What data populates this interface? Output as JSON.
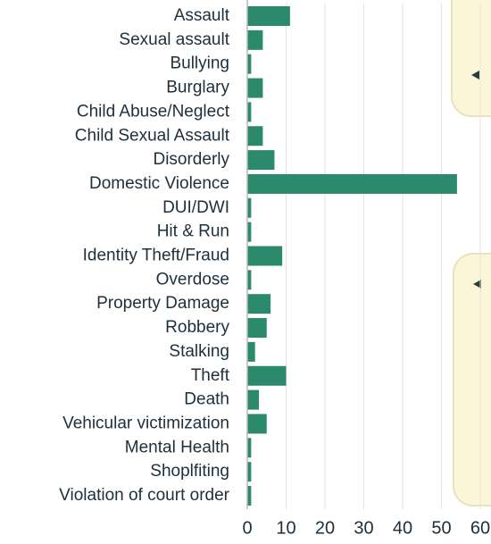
{
  "chart_data": {
    "type": "barh",
    "categories": [
      "Assault",
      "Sexual assault",
      "Bullying",
      "Burglary",
      "Child Abuse/Neglect",
      "Child Sexual Assault",
      "Disorderly",
      "Domestic Violence",
      "DUI/DWI",
      "Hit & Run",
      "Identity Theft/Fraud",
      "Overdose",
      "Property Damage",
      "Robbery",
      "Stalking",
      "Theft",
      "Death",
      "Vehicular victimization",
      "Mental Health",
      "Shoplfiting",
      "Violation of court order"
    ],
    "values": [
      11,
      4,
      1,
      4,
      1,
      4,
      7,
      54,
      1,
      1,
      9,
      1,
      6,
      5,
      2,
      10,
      3,
      5,
      1,
      1,
      1
    ],
    "color": "#2b8a6c",
    "xlim": [
      0,
      60
    ],
    "xticks": [
      0,
      10,
      20,
      30,
      40,
      50,
      60
    ],
    "grid": true
  }
}
